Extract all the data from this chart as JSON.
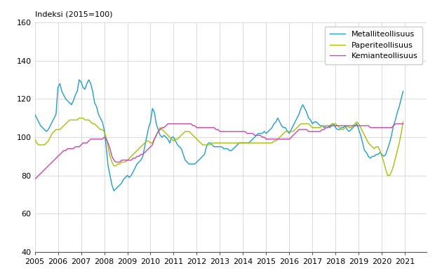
{
  "ylabel": "Indeksi (2015=100)",
  "ylim": [
    40,
    160
  ],
  "xlim": [
    2005.0,
    2021.92
  ],
  "yticks": [
    40,
    60,
    80,
    100,
    120,
    140,
    160
  ],
  "xticks": [
    2005,
    2006,
    2007,
    2008,
    2009,
    2010,
    2011,
    2012,
    2013,
    2014,
    2015,
    2016,
    2017,
    2018,
    2019,
    2020,
    2021
  ],
  "line_colors": {
    "metalli": "#1d9dd9",
    "paperi": "#aabf00",
    "kemia": "#cc44aa"
  },
  "legend_labels": [
    "Metalliteollisuus",
    "Paperiteollisuus",
    "Kemianteollisuus"
  ],
  "metalli": [
    112,
    110,
    108,
    106,
    105,
    104,
    103,
    104,
    106,
    108,
    110,
    112,
    126,
    128,
    124,
    122,
    120,
    119,
    118,
    117,
    119,
    122,
    124,
    130,
    129,
    126,
    125,
    128,
    130,
    128,
    124,
    118,
    116,
    112,
    110,
    108,
    104,
    95,
    85,
    80,
    75,
    72,
    73,
    74,
    75,
    76,
    78,
    79,
    80,
    79,
    80,
    82,
    84,
    86,
    87,
    88,
    90,
    95,
    100,
    105,
    108,
    115,
    113,
    107,
    104,
    101,
    100,
    101,
    100,
    99,
    97,
    100,
    100,
    98,
    96,
    95,
    94,
    91,
    88,
    87,
    86,
    86,
    86,
    86,
    87,
    88,
    89,
    90,
    91,
    95,
    97,
    97,
    96,
    95,
    95,
    95,
    95,
    95,
    94,
    94,
    94,
    93,
    93,
    94,
    95,
    96,
    97,
    97,
    97,
    97,
    97,
    97,
    98,
    99,
    100,
    101,
    102,
    102,
    102,
    103,
    102,
    103,
    104,
    105,
    107,
    108,
    110,
    108,
    106,
    105,
    105,
    103,
    102,
    104,
    106,
    108,
    110,
    112,
    115,
    117,
    115,
    113,
    110,
    109,
    107,
    108,
    108,
    107,
    106,
    106,
    105,
    106,
    106,
    105,
    106,
    107,
    105,
    104,
    104,
    105,
    105,
    106,
    104,
    103,
    104,
    105,
    106,
    107,
    104,
    101,
    97,
    93,
    92,
    90,
    89,
    90,
    90,
    91,
    91,
    92,
    91,
    90,
    91,
    94,
    97,
    101,
    106,
    109,
    113,
    116,
    120,
    124
  ],
  "paperi": [
    99,
    97,
    96,
    96,
    96,
    96,
    97,
    98,
    100,
    102,
    103,
    104,
    104,
    104,
    105,
    106,
    107,
    108,
    109,
    109,
    109,
    109,
    109,
    110,
    110,
    110,
    109,
    109,
    109,
    108,
    107,
    107,
    106,
    105,
    104,
    104,
    103,
    100,
    95,
    90,
    87,
    85,
    85,
    86,
    86,
    87,
    87,
    87,
    88,
    89,
    90,
    91,
    92,
    93,
    94,
    95,
    96,
    97,
    98,
    98,
    97,
    97,
    99,
    101,
    103,
    105,
    104,
    103,
    102,
    101,
    100,
    99,
    98,
    99,
    99,
    100,
    101,
    102,
    103,
    103,
    103,
    102,
    101,
    100,
    99,
    98,
    97,
    96,
    96,
    96,
    96,
    96,
    97,
    97,
    97,
    97,
    97,
    97,
    97,
    97,
    97,
    97,
    97,
    97,
    97,
    97,
    97,
    97,
    97,
    97,
    97,
    97,
    97,
    97,
    97,
    97,
    97,
    97,
    97,
    97,
    97,
    97,
    97,
    97,
    98,
    98,
    99,
    100,
    101,
    102,
    103,
    103,
    103,
    103,
    103,
    104,
    105,
    106,
    107,
    107,
    107,
    107,
    107,
    106,
    105,
    105,
    105,
    105,
    105,
    106,
    106,
    106,
    106,
    106,
    107,
    107,
    107,
    106,
    105,
    104,
    104,
    105,
    106,
    105,
    105,
    106,
    107,
    108,
    107,
    105,
    103,
    101,
    99,
    97,
    96,
    95,
    94,
    95,
    95,
    93,
    90,
    87,
    83,
    80,
    80,
    82,
    85,
    89,
    93,
    97,
    102,
    108
  ],
  "kemia": [
    78,
    79,
    80,
    81,
    82,
    83,
    84,
    85,
    86,
    87,
    88,
    89,
    90,
    91,
    92,
    93,
    93,
    94,
    94,
    94,
    94,
    95,
    95,
    95,
    96,
    97,
    97,
    97,
    98,
    99,
    99,
    99,
    99,
    99,
    99,
    99,
    100,
    99,
    97,
    94,
    90,
    88,
    87,
    87,
    87,
    88,
    88,
    88,
    88,
    88,
    88,
    89,
    89,
    90,
    90,
    91,
    91,
    92,
    93,
    94,
    95,
    96,
    99,
    101,
    103,
    104,
    105,
    105,
    106,
    107,
    107,
    107,
    107,
    107,
    107,
    107,
    107,
    107,
    107,
    107,
    107,
    107,
    106,
    106,
    105,
    105,
    105,
    105,
    105,
    105,
    105,
    105,
    105,
    105,
    104,
    104,
    103,
    103,
    103,
    103,
    103,
    103,
    103,
    103,
    103,
    103,
    103,
    103,
    103,
    103,
    102,
    102,
    102,
    102,
    101,
    101,
    101,
    101,
    100,
    100,
    99,
    99,
    99,
    99,
    99,
    99,
    99,
    99,
    99,
    99,
    99,
    99,
    99,
    100,
    101,
    102,
    103,
    104,
    104,
    104,
    104,
    104,
    103,
    103,
    103,
    103,
    103,
    103,
    103,
    104,
    104,
    105,
    105,
    106,
    106,
    106,
    106,
    106,
    106,
    106,
    106,
    106,
    106,
    106,
    106,
    106,
    106,
    106,
    106,
    106,
    106,
    106,
    106,
    106,
    105,
    105,
    105,
    105,
    105,
    105,
    105,
    105,
    105,
    105,
    105,
    105,
    106,
    107,
    107,
    107,
    107,
    107
  ]
}
